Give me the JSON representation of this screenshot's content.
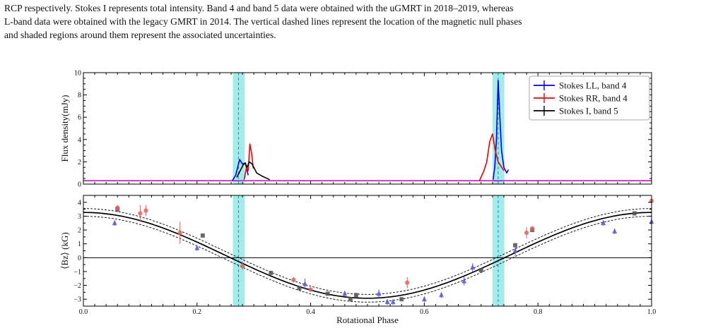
{
  "caption": {
    "lines": [
      "RCP respectively. Stokes I represents total intensity. Band 4 and band 5 data were obtained with the uGMRT in 2018–2019, whereas",
      "L-band data were obtained with the legacy GMRT in 2014. The vertical dashed lines represent the location of the magnetic null phases",
      "and shaded regions around them represent the associated uncertainties."
    ]
  },
  "chart_data": [
    {
      "type": "line",
      "panel": "top",
      "xlabel": "",
      "ylabel": "Flux density(mJy)",
      "xlim": [
        0,
        1
      ],
      "ylim": [
        0,
        10
      ],
      "yticks": [
        0,
        2,
        4,
        6,
        8,
        10
      ],
      "legend_position": "top-right",
      "legend": [
        "Stokes LL, band 4",
        "Stokes RR, band 4",
        "Stokes I, band 5"
      ],
      "null_phases": [
        0.273,
        0.73
      ],
      "null_bands": [
        [
          0.263,
          0.284
        ],
        [
          0.72,
          0.741
        ]
      ],
      "baseline": {
        "y": 0.3,
        "color": "#c000c0"
      },
      "series": [
        {
          "name": "Stokes LL, band 4",
          "color": "#0000ee",
          "segments": [
            [
              [
                0.262,
                0.3
              ],
              [
                0.268,
                0.8
              ],
              [
                0.275,
                2.2
              ],
              [
                0.28,
                1.8
              ],
              [
                0.285,
                1.9
              ],
              [
                0.29,
                0.8
              ]
            ],
            [
              [
                0.721,
                0.4
              ],
              [
                0.724,
                1.5
              ],
              [
                0.727,
                4.0
              ],
              [
                0.73,
                9.3
              ],
              [
                0.733,
                6.0
              ],
              [
                0.736,
                3.0
              ],
              [
                0.74,
                1.5
              ],
              [
                0.745,
                1.0
              ],
              [
                0.748,
                1.3
              ]
            ]
          ]
        },
        {
          "name": "Stokes RR, band 4",
          "color": "#ee0000",
          "segments": [
            [
              [
                0.283,
                0.4
              ],
              [
                0.287,
                1.5
              ],
              [
                0.29,
                1.2
              ],
              [
                0.293,
                3.6
              ],
              [
                0.296,
                2.8
              ],
              [
                0.299,
                1.4
              ]
            ],
            [
              [
                0.697,
                0.3
              ],
              [
                0.705,
                1.2
              ],
              [
                0.71,
                2.0
              ],
              [
                0.715,
                3.8
              ],
              [
                0.72,
                4.5
              ],
              [
                0.725,
                3.0
              ],
              [
                0.73,
                2.0
              ],
              [
                0.735,
                1.6
              ],
              [
                0.74,
                1.2
              ]
            ]
          ]
        },
        {
          "name": "Stokes I, band 5",
          "color": "#000000",
          "segments": [
            [
              [
                0.27,
                0.6
              ],
              [
                0.276,
                1.2
              ],
              [
                0.281,
                1.7
              ],
              [
                0.285,
                1.9
              ],
              [
                0.288,
                1.5
              ],
              [
                0.292,
                2.0
              ],
              [
                0.297,
                1.8
              ],
              [
                0.305,
                1.0
              ],
              [
                0.315,
                0.7
              ],
              [
                0.328,
                0.4
              ]
            ]
          ]
        }
      ]
    },
    {
      "type": "scatter",
      "panel": "bottom",
      "xlabel": "Rotational Phase",
      "ylabel": "⟨Bz⟩ (kG)",
      "xlim": [
        0,
        1
      ],
      "ylim": [
        -3.5,
        4.5
      ],
      "xticks": [
        "0.0",
        "0.2",
        "0.4",
        "0.6",
        "0.8",
        "1.0"
      ],
      "yticks": [
        "−3",
        "−2",
        "−1",
        "0",
        "1",
        "2",
        "3",
        "4"
      ],
      "null_phases": [
        0.273,
        0.73
      ],
      "null_bands": [
        [
          0.263,
          0.284
        ],
        [
          0.72,
          0.741
        ]
      ],
      "model": {
        "center": 0.17,
        "amplitude": 3.1,
        "phase_max": 1.0,
        "band": 0.28
      },
      "series": [
        {
          "marker": "square",
          "color": "#555555",
          "points": [
            [
              0.06,
              3.5,
              0.2
            ],
            [
              0.21,
              1.6,
              0.1
            ],
            [
              0.33,
              -1.1,
              0.1
            ],
            [
              0.38,
              -2.2,
              0.15
            ],
            [
              0.43,
              -2.6,
              0.1
            ],
            [
              0.47,
              -3.0,
              0.1
            ],
            [
              0.48,
              -2.7,
              0.1
            ],
            [
              0.56,
              -3.0,
              0.1
            ],
            [
              0.7,
              -0.9,
              0.1
            ],
            [
              0.76,
              0.9,
              0.1
            ],
            [
              0.79,
              2.0,
              0.15
            ],
            [
              0.97,
              3.2,
              0.1
            ]
          ]
        },
        {
          "marker": "circle",
          "color": "#e06060",
          "points": [
            [
              0.06,
              3.6,
              0.2
            ],
            [
              0.1,
              3.2,
              0.6
            ],
            [
              0.11,
              3.4,
              0.4
            ],
            [
              0.17,
              1.8,
              0.8
            ],
            [
              0.28,
              -0.6,
              0.3
            ],
            [
              0.37,
              -1.6,
              0.2
            ],
            [
              0.4,
              -2.3,
              0.15
            ],
            [
              0.57,
              -1.8,
              0.4
            ],
            [
              0.78,
              1.8,
              0.4
            ],
            [
              0.79,
              2.1,
              0.2
            ],
            [
              1.0,
              4.1,
              0.2
            ]
          ]
        },
        {
          "marker": "triangle",
          "color": "#5a5ad0",
          "points": [
            [
              0.055,
              2.5,
              0.2
            ],
            [
              0.2,
              0.7,
              0.2
            ],
            [
              0.39,
              -1.9,
              0.4
            ],
            [
              0.46,
              -2.6,
              0.2
            ],
            [
              0.52,
              -2.6,
              0.3
            ],
            [
              0.535,
              -3.2,
              0.2
            ],
            [
              0.545,
              -3.2,
              0.2
            ],
            [
              0.6,
              -3.0,
              0.2
            ],
            [
              0.63,
              -2.7,
              0.2
            ],
            [
              0.67,
              -1.7,
              0.3
            ],
            [
              0.685,
              -0.7,
              0.3
            ],
            [
              0.76,
              0.5,
              0.4
            ],
            [
              0.915,
              2.5,
              0.2
            ],
            [
              0.935,
              1.9,
              0.2
            ],
            [
              1.0,
              2.6,
              0.2
            ]
          ]
        }
      ]
    }
  ]
}
